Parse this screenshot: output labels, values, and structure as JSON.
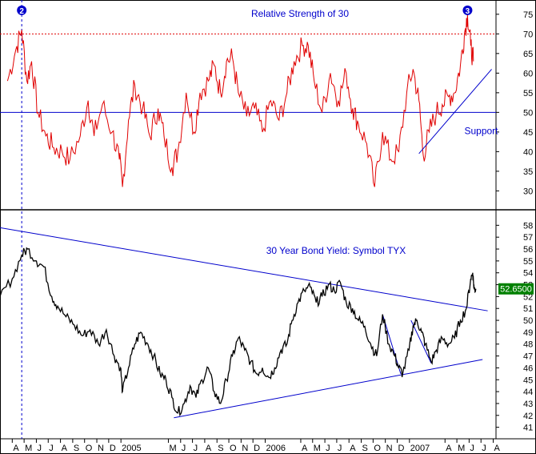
{
  "colors": {
    "rsi_line": "#e00000",
    "price_line": "#000000",
    "trend_line": "#0000cc",
    "ref_dotted": "#e00000",
    "marker_fill": "#0000cc",
    "last_price_bg": "#008000",
    "last_price_text": "#ffffff"
  },
  "chart_data": [
    {
      "type": "line",
      "title": "Relative Strength of 30",
      "y_ticks": [
        "75",
        "70",
        "65",
        "60",
        "55",
        "50",
        "45",
        "40",
        "35",
        "30"
      ],
      "ylim": [
        26,
        77
      ],
      "reference_lines": [
        {
          "value": 70,
          "style": "dotted"
        },
        {
          "value": 50,
          "style": "solid"
        }
      ],
      "annotations": [
        {
          "text": "Support",
          "x": "2007-05-20",
          "y": 44.5
        },
        {
          "text": "2",
          "marker": "circle",
          "x": "2004-04-25",
          "y": 76
        },
        {
          "text": "3",
          "marker": "circle",
          "x": "2007-05-28",
          "y": 76
        }
      ],
      "support_line": [
        [
          "2007-01-25",
          39.5
        ],
        [
          "2007-07-28",
          61
        ]
      ],
      "series": [
        {
          "values": [
            [
              "2004-03-20",
              58
            ],
            [
              "2004-04-10",
              66
            ],
            [
              "2004-04-25",
              71
            ],
            [
              "2004-05-08",
              58
            ],
            [
              "2004-05-20",
              63
            ],
            [
              "2004-06-05",
              50
            ],
            [
              "2004-06-25",
              44
            ],
            [
              "2004-07-15",
              41
            ],
            [
              "2004-08-05",
              40
            ],
            [
              "2004-08-25",
              38
            ],
            [
              "2004-09-20",
              44
            ],
            [
              "2004-10-10",
              53
            ],
            [
              "2004-10-25",
              44
            ],
            [
              "2004-11-15",
              52
            ],
            [
              "2004-12-10",
              45
            ],
            [
              "2004-12-28",
              38
            ],
            [
              "2005-01-05",
              31
            ],
            [
              "2005-01-20",
              48
            ],
            [
              "2005-02-05",
              57
            ],
            [
              "2005-02-25",
              51
            ],
            [
              "2005-03-15",
              44
            ],
            [
              "2005-04-05",
              51
            ],
            [
              "2005-04-20",
              44
            ],
            [
              "2005-05-10",
              36
            ],
            [
              "2005-05-25",
              40
            ],
            [
              "2005-06-15",
              55
            ],
            [
              "2005-07-05",
              45
            ],
            [
              "2005-07-20",
              55
            ],
            [
              "2005-08-10",
              58
            ],
            [
              "2005-08-25",
              62
            ],
            [
              "2005-09-10",
              55
            ],
            [
              "2005-09-25",
              63
            ],
            [
              "2005-10-10",
              64
            ],
            [
              "2005-10-25",
              55
            ],
            [
              "2005-11-15",
              49
            ],
            [
              "2005-12-05",
              51
            ],
            [
              "2005-12-25",
              45
            ],
            [
              "2006-01-15",
              53
            ],
            [
              "2006-02-05",
              48
            ],
            [
              "2006-02-25",
              55
            ],
            [
              "2006-03-15",
              63
            ],
            [
              "2006-04-05",
              67
            ],
            [
              "2006-04-20",
              67
            ],
            [
              "2006-05-05",
              58
            ],
            [
              "2006-05-25",
              50
            ],
            [
              "2006-06-15",
              60
            ],
            [
              "2006-07-05",
              53
            ],
            [
              "2006-07-25",
              60
            ],
            [
              "2006-08-10",
              51
            ],
            [
              "2006-08-25",
              47
            ],
            [
              "2006-09-15",
              42
            ],
            [
              "2006-10-05",
              31
            ],
            [
              "2006-10-25",
              45
            ],
            [
              "2006-11-15",
              38
            ],
            [
              "2006-12-05",
              40
            ],
            [
              "2006-12-25",
              55
            ],
            [
              "2007-01-10",
              61
            ],
            [
              "2007-01-25",
              53
            ],
            [
              "2007-02-05",
              39
            ],
            [
              "2007-02-20",
              45
            ],
            [
              "2007-03-10",
              50
            ],
            [
              "2007-03-25",
              52
            ],
            [
              "2007-04-10",
              54
            ],
            [
              "2007-04-25",
              55
            ],
            [
              "2007-05-10",
              62
            ],
            [
              "2007-05-20",
              70
            ],
            [
              "2007-05-28",
              75
            ],
            [
              "2007-06-05",
              67
            ],
            [
              "2007-06-12",
              63
            ]
          ]
        }
      ]
    },
    {
      "type": "line",
      "title": "30 Year Bond Yield: Symbol TYX",
      "y_ticks": [
        "58",
        "57",
        "56",
        "55",
        "54",
        "53",
        "52",
        "51",
        "50",
        "49",
        "48",
        "47",
        "46",
        "45",
        "44",
        "43",
        "42",
        "41"
      ],
      "ylim": [
        40.3,
        58.9
      ],
      "last_value_label": "52.6500",
      "last_value": 52.65,
      "trend_lines": [
        [
          [
            "2004-03-01",
            57.8
          ],
          [
            "2007-07-18",
            50.8
          ]
        ],
        [
          [
            "2005-05-15",
            41.8
          ],
          [
            "2007-07-05",
            46.7
          ]
        ],
        [
          [
            "2006-10-25",
            50.5
          ],
          [
            "2006-12-10",
            45.5
          ]
        ],
        [
          [
            "2007-01-05",
            50.0
          ],
          [
            "2007-02-25",
            46.4
          ]
        ]
      ],
      "series": [
        {
          "values": [
            [
              "2004-03-01",
              52.0
            ],
            [
              "2004-04-01",
              53.5
            ],
            [
              "2004-04-25",
              55.5
            ],
            [
              "2004-05-10",
              56.0
            ],
            [
              "2004-06-01",
              55.0
            ],
            [
              "2004-06-20",
              54.5
            ],
            [
              "2004-07-10",
              52.0
            ],
            [
              "2004-07-25",
              51.2
            ],
            [
              "2004-08-15",
              50.3
            ],
            [
              "2004-09-05",
              49.6
            ],
            [
              "2004-09-25",
              48.7
            ],
            [
              "2004-10-15",
              49.2
            ],
            [
              "2004-11-05",
              48.0
            ],
            [
              "2004-11-25",
              49.2
            ],
            [
              "2004-12-15",
              47.0
            ],
            [
              "2004-12-31",
              46.0
            ],
            [
              "2005-01-05",
              44.0
            ],
            [
              "2005-01-20",
              46.0
            ],
            [
              "2005-02-05",
              48.0
            ],
            [
              "2005-02-20",
              49.0
            ],
            [
              "2005-03-10",
              48.0
            ],
            [
              "2005-03-25",
              47.0
            ],
            [
              "2005-04-10",
              45.5
            ],
            [
              "2005-04-25",
              45.0
            ],
            [
              "2005-05-10",
              43.5
            ],
            [
              "2005-05-25",
              42.2
            ],
            [
              "2005-06-10",
              43.0
            ],
            [
              "2005-06-25",
              44.5
            ],
            [
              "2005-07-10",
              43.5
            ],
            [
              "2005-07-25",
              45.0
            ],
            [
              "2005-08-10",
              46.0
            ],
            [
              "2005-08-25",
              44.0
            ],
            [
              "2005-09-10",
              43.0
            ],
            [
              "2005-09-25",
              45.0
            ],
            [
              "2005-10-10",
              47.0
            ],
            [
              "2005-10-25",
              48.5
            ],
            [
              "2005-11-10",
              47.5
            ],
            [
              "2005-11-25",
              46.5
            ],
            [
              "2005-12-10",
              45.5
            ],
            [
              "2005-12-25",
              46.0
            ],
            [
              "2006-01-10",
              45.2
            ],
            [
              "2006-01-25",
              46.0
            ],
            [
              "2006-02-10",
              47.5
            ],
            [
              "2006-02-25",
              48.0
            ],
            [
              "2006-03-10",
              50.0
            ],
            [
              "2006-03-25",
              51.5
            ],
            [
              "2006-04-10",
              52.5
            ],
            [
              "2006-04-25",
              52.8
            ],
            [
              "2006-05-10",
              51.5
            ],
            [
              "2006-05-25",
              52.0
            ],
            [
              "2006-06-10",
              53.0
            ],
            [
              "2006-06-25",
              52.5
            ],
            [
              "2006-07-10",
              53.2
            ],
            [
              "2006-07-25",
              51.5
            ],
            [
              "2006-08-10",
              51.0
            ],
            [
              "2006-08-25",
              50.0
            ],
            [
              "2006-09-10",
              49.5
            ],
            [
              "2006-09-25",
              48.0
            ],
            [
              "2006-10-10",
              47.0
            ],
            [
              "2006-10-25",
              50.5
            ],
            [
              "2006-11-10",
              48.0
            ],
            [
              "2006-11-25",
              47.0
            ],
            [
              "2006-12-05",
              46.0
            ],
            [
              "2006-12-15",
              45.5
            ],
            [
              "2006-12-31",
              47.5
            ],
            [
              "2007-01-10",
              49.5
            ],
            [
              "2007-01-20",
              50.0
            ],
            [
              "2007-02-01",
              49.0
            ],
            [
              "2007-02-10",
              48.0
            ],
            [
              "2007-02-25",
              46.5
            ],
            [
              "2007-03-10",
              47.5
            ],
            [
              "2007-03-25",
              48.5
            ],
            [
              "2007-04-10",
              48.0
            ],
            [
              "2007-04-25",
              48.5
            ],
            [
              "2007-05-10",
              50.0
            ],
            [
              "2007-05-25",
              51.0
            ],
            [
              "2007-06-05",
              53.5
            ],
            [
              "2007-06-10",
              54.0
            ],
            [
              "2007-06-14",
              52.6
            ],
            [
              "2007-06-18",
              52.65
            ]
          ]
        }
      ]
    }
  ],
  "x_axis": {
    "ticks": [
      {
        "label": "A",
        "x": "2004-04-01"
      },
      {
        "label": "M",
        "x": "2004-05-01"
      },
      {
        "label": "J",
        "x": "2004-06-01"
      },
      {
        "label": "J",
        "x": "2004-07-01"
      },
      {
        "label": "A",
        "x": "2004-08-01"
      },
      {
        "label": "S",
        "x": "2004-09-01"
      },
      {
        "label": "O",
        "x": "2004-10-01"
      },
      {
        "label": "N",
        "x": "2004-11-01"
      },
      {
        "label": "D",
        "x": "2004-12-01"
      },
      {
        "label": "2005",
        "x": "2005-01-01"
      },
      {
        "label": "M",
        "x": "2005-05-01"
      },
      {
        "label": "J",
        "x": "2005-06-01"
      },
      {
        "label": "J",
        "x": "2005-07-01"
      },
      {
        "label": "A",
        "x": "2005-08-01"
      },
      {
        "label": "S",
        "x": "2005-09-01"
      },
      {
        "label": "O",
        "x": "2005-10-01"
      },
      {
        "label": "N",
        "x": "2005-11-01"
      },
      {
        "label": "D",
        "x": "2005-12-01"
      },
      {
        "label": "2006",
        "x": "2006-01-01"
      },
      {
        "label": "A",
        "x": "2006-04-01"
      },
      {
        "label": "M",
        "x": "2006-05-01"
      },
      {
        "label": "J",
        "x": "2006-06-01"
      },
      {
        "label": "J",
        "x": "2006-07-01"
      },
      {
        "label": "A",
        "x": "2006-08-01"
      },
      {
        "label": "S",
        "x": "2006-09-01"
      },
      {
        "label": "O",
        "x": "2006-10-01"
      },
      {
        "label": "N",
        "x": "2006-11-01"
      },
      {
        "label": "D",
        "x": "2006-12-01"
      },
      {
        "label": "2007",
        "x": "2007-01-01"
      },
      {
        "label": "A",
        "x": "2007-04-01"
      },
      {
        "label": "M",
        "x": "2007-05-01"
      },
      {
        "label": "J",
        "x": "2007-06-01"
      },
      {
        "label": "J",
        "x": "2007-07-01"
      },
      {
        "label": "A",
        "x": "2007-08-01"
      }
    ]
  }
}
